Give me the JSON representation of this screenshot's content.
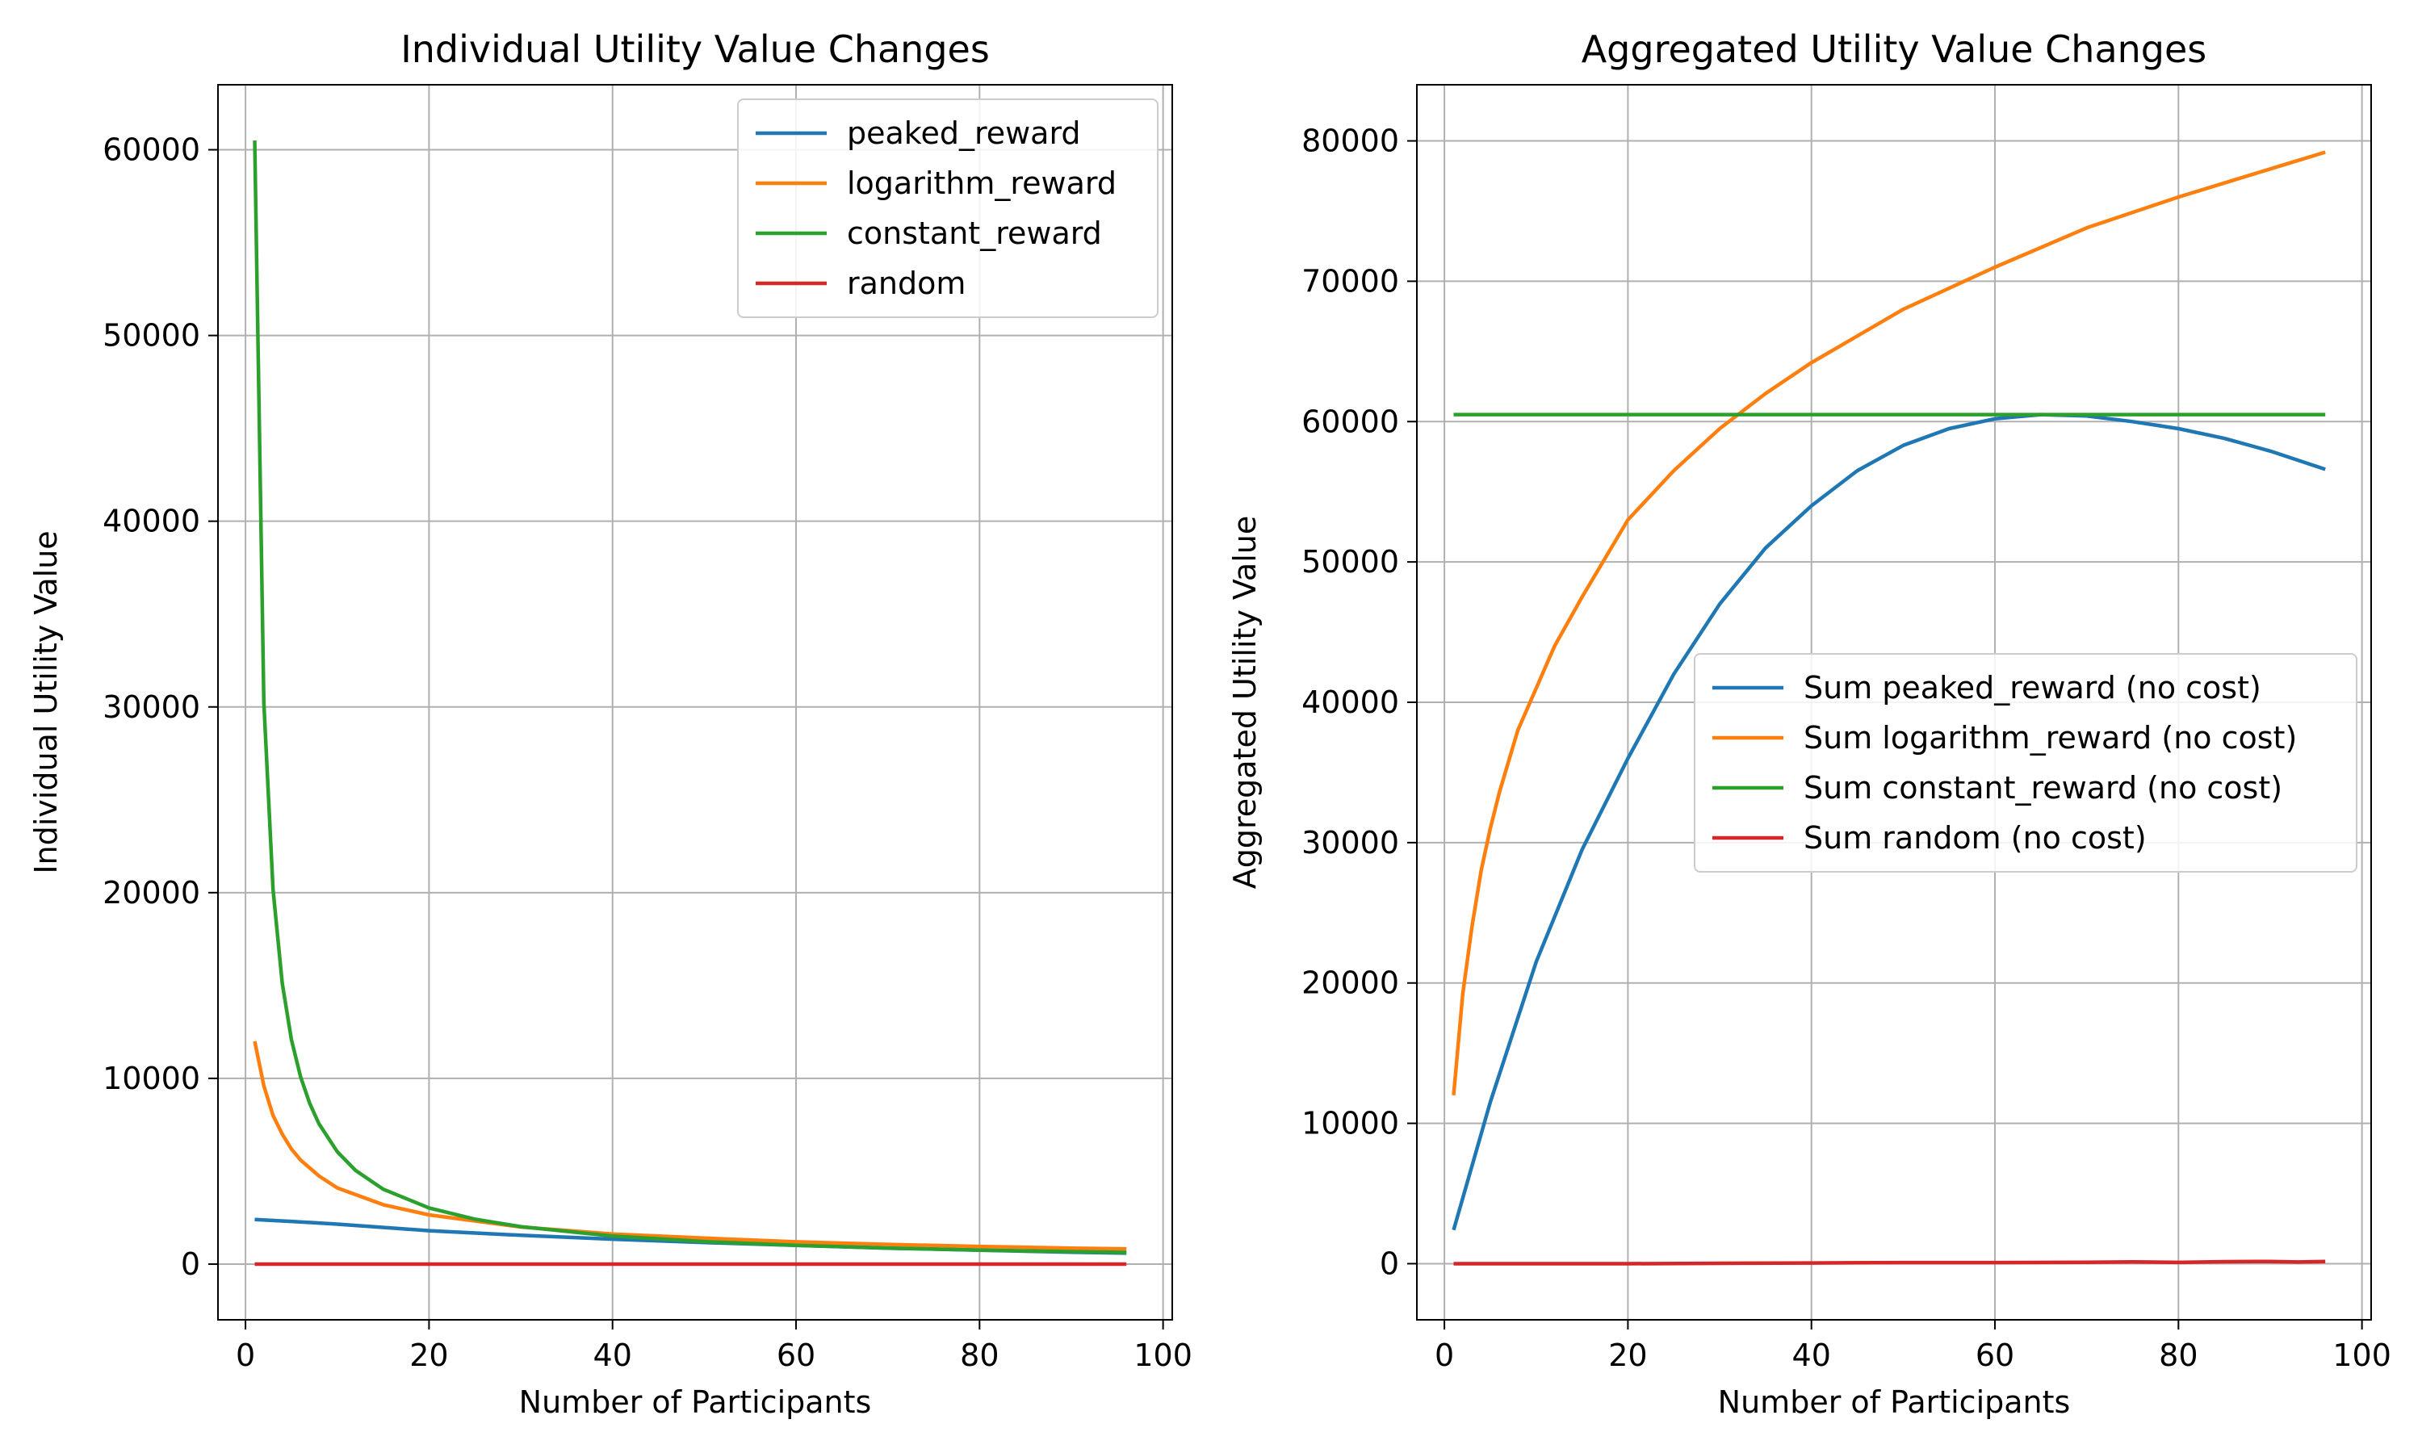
{
  "chart_data": [
    {
      "type": "line",
      "title": "Individual Utility Value Changes",
      "xlabel": "Number of Participants",
      "ylabel": "Individual Utility Value",
      "xlim": [
        -3,
        101
      ],
      "ylim": [
        -3000,
        63500
      ],
      "xticks": [
        0,
        20,
        40,
        60,
        80,
        100
      ],
      "yticks": [
        0,
        10000,
        20000,
        30000,
        40000,
        50000,
        60000
      ],
      "grid": true,
      "legend_position": "top-right",
      "series": [
        {
          "name": "peaked_reward",
          "color": "#1f77b4",
          "x": [
            1,
            5,
            10,
            20,
            30,
            40,
            50,
            60,
            70,
            80,
            90,
            96
          ],
          "values": [
            2400,
            2300,
            2150,
            1800,
            1550,
            1340,
            1160,
            1010,
            860,
            750,
            640,
            590
          ]
        },
        {
          "name": "logarithm_reward",
          "color": "#ff7f0e",
          "x": [
            1,
            2,
            3,
            4,
            5,
            6,
            8,
            10,
            15,
            20,
            30,
            40,
            50,
            60,
            70,
            80,
            90,
            96
          ],
          "values": [
            12000,
            9600,
            8000,
            7000,
            6200,
            5600,
            4750,
            4100,
            3200,
            2650,
            2000,
            1620,
            1400,
            1200,
            1060,
            950,
            860,
            820
          ]
        },
        {
          "name": "constant_reward",
          "color": "#2ca02c",
          "x": [
            1,
            2,
            3,
            4,
            5,
            6,
            7,
            8,
            10,
            12,
            15,
            20,
            25,
            30,
            40,
            50,
            60,
            70,
            80,
            90,
            96
          ],
          "values": [
            60500,
            30250,
            20167,
            15125,
            12100,
            10083,
            8643,
            7563,
            6050,
            5042,
            4033,
            3025,
            2420,
            2017,
            1513,
            1210,
            1008,
            864,
            756,
            672,
            630
          ]
        },
        {
          "name": "random",
          "color": "#d62728",
          "x": [
            1,
            96
          ],
          "values": [
            0,
            0
          ]
        }
      ]
    },
    {
      "type": "line",
      "title": "Aggregated Utility Value Changes",
      "xlabel": "Number of Participants",
      "ylabel": "Aggregated Utility Value",
      "xlim": [
        -3,
        101
      ],
      "ylim": [
        -4000,
        84000
      ],
      "xticks": [
        0,
        20,
        40,
        60,
        80,
        100
      ],
      "yticks": [
        0,
        10000,
        20000,
        30000,
        40000,
        50000,
        60000,
        70000,
        80000
      ],
      "grid": true,
      "legend_position": "center-right",
      "series": [
        {
          "name": "Sum peaked_reward (no cost)",
          "color": "#1f77b4",
          "x": [
            1,
            5,
            10,
            15,
            20,
            25,
            30,
            35,
            40,
            45,
            50,
            55,
            60,
            65,
            70,
            75,
            80,
            85,
            90,
            96
          ],
          "values": [
            2400,
            11500,
            21500,
            29500,
            36000,
            42000,
            47000,
            51000,
            54000,
            56500,
            58300,
            59500,
            60200,
            60500,
            60400,
            60000,
            59500,
            58800,
            57900,
            56600
          ]
        },
        {
          "name": "Sum logarithm_reward (no cost)",
          "color": "#ff7f0e",
          "x": [
            1,
            2,
            3,
            4,
            5,
            6,
            8,
            10,
            12,
            15,
            20,
            25,
            30,
            35,
            40,
            50,
            60,
            70,
            80,
            90,
            96
          ],
          "values": [
            12000,
            19200,
            24000,
            28000,
            31000,
            33600,
            38000,
            41000,
            44000,
            47500,
            53000,
            56500,
            59500,
            62000,
            64200,
            68000,
            71000,
            73800,
            76000,
            78000,
            79200
          ]
        },
        {
          "name": "Sum constant_reward (no cost)",
          "color": "#2ca02c",
          "x": [
            1,
            96
          ],
          "values": [
            60500,
            60500
          ]
        },
        {
          "name": "Sum random (no cost)",
          "color": "#d62728",
          "x": [
            1,
            20,
            40,
            50,
            60,
            70,
            75,
            80,
            85,
            90,
            93,
            96
          ],
          "values": [
            0,
            0,
            50,
            80,
            80,
            100,
            130,
            90,
            140,
            160,
            120,
            150
          ]
        }
      ]
    }
  ]
}
